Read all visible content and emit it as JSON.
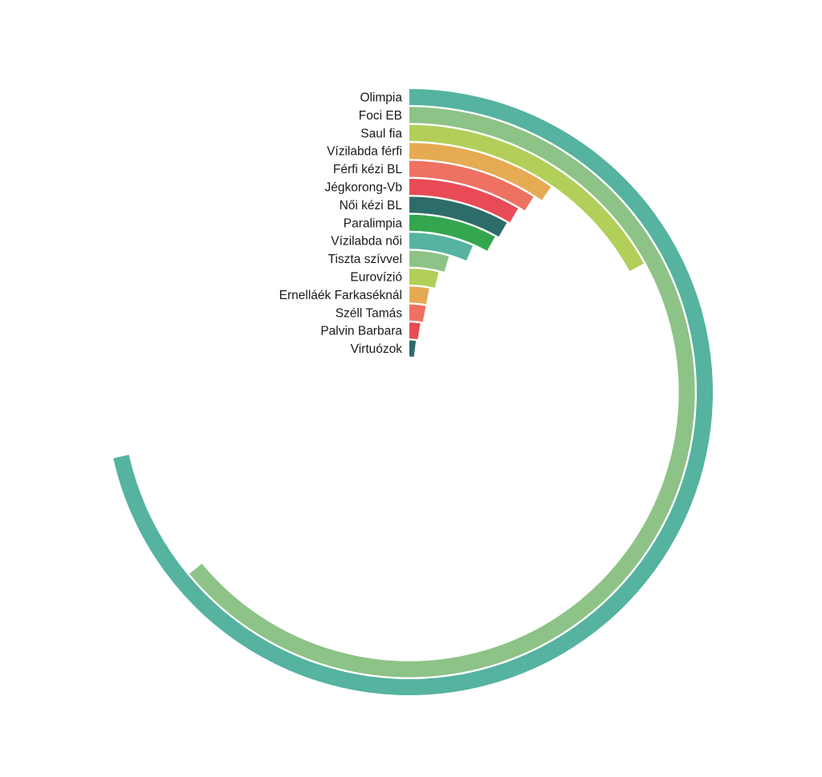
{
  "chart_data": {
    "type": "radial-bar",
    "title": "",
    "max_value": 1,
    "series": [
      {
        "label": "Olimpia",
        "value": 0.715,
        "color": "#55b3a0"
      },
      {
        "label": "Foci EB",
        "value": 0.64,
        "color": "#8dc386"
      },
      {
        "label": "Saul fia",
        "value": 0.17,
        "color": "#b1cf59"
      },
      {
        "label": "Vízilabda férfi",
        "value": 0.096,
        "color": "#e6aa53"
      },
      {
        "label": "Férfi kézi BL",
        "value": 0.09,
        "color": "#ee7162"
      },
      {
        "label": "Jégkorong-Vb",
        "value": 0.085,
        "color": "#e84b56"
      },
      {
        "label": "Női kézi BL",
        "value": 0.083,
        "color": "#2c6c69"
      },
      {
        "label": "Paralimpia",
        "value": 0.08,
        "color": "#33a64f"
      },
      {
        "label": "Vízilabda női",
        "value": 0.065,
        "color": "#55b3a0"
      },
      {
        "label": "Tiszta szívvel",
        "value": 0.045,
        "color": "#8dc386"
      },
      {
        "label": "Eurovízió",
        "value": 0.038,
        "color": "#b1cf59"
      },
      {
        "label": "Ernelláék Farkaséknál",
        "value": 0.03,
        "color": "#e6aa53"
      },
      {
        "label": "Széll Tamás",
        "value": 0.03,
        "color": "#ee7162"
      },
      {
        "label": "Palvin Barbara",
        "value": 0.025,
        "color": "#e84b56"
      },
      {
        "label": "Virtuózok",
        "value": 0.02,
        "color": "#2c6c69"
      }
    ]
  }
}
